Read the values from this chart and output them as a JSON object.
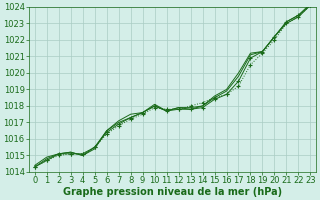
{
  "x": [
    0,
    1,
    2,
    3,
    4,
    5,
    6,
    7,
    8,
    9,
    10,
    11,
    12,
    13,
    14,
    15,
    16,
    17,
    18,
    19,
    20,
    21,
    22,
    23
  ],
  "series": [
    [
      1014.3,
      1014.7,
      1015.0,
      1015.1,
      1015.1,
      1015.5,
      1016.3,
      1016.8,
      1017.2,
      1017.5,
      1017.9,
      1017.8,
      1017.8,
      1018.0,
      1018.2,
      1018.5,
      1018.7,
      1019.2,
      1020.5,
      1021.2,
      1022.0,
      1023.0,
      1023.4,
      1024.1
    ],
    [
      1014.3,
      1014.7,
      1015.1,
      1015.1,
      1015.1,
      1015.5,
      1016.4,
      1016.9,
      1017.3,
      1017.6,
      1018.0,
      1017.7,
      1017.8,
      1017.8,
      1017.9,
      1018.4,
      1018.7,
      1019.5,
      1020.9,
      1021.3,
      1022.2,
      1023.1,
      1023.5,
      1024.1
    ],
    [
      1014.3,
      1014.8,
      1015.1,
      1015.2,
      1015.0,
      1015.5,
      1016.5,
      1017.0,
      1017.3,
      1017.6,
      1018.0,
      1017.7,
      1017.9,
      1017.8,
      1018.0,
      1018.5,
      1018.9,
      1019.8,
      1021.1,
      1021.3,
      1022.2,
      1023.1,
      1023.5,
      1024.2
    ],
    [
      1014.4,
      1014.9,
      1015.1,
      1015.2,
      1015.0,
      1015.4,
      1016.5,
      1017.1,
      1017.5,
      1017.6,
      1018.1,
      1017.7,
      1017.9,
      1017.9,
      1018.0,
      1018.6,
      1019.0,
      1020.0,
      1021.2,
      1021.3,
      1022.2,
      1023.0,
      1023.4,
      1024.1
    ]
  ],
  "line_color": "#1a6b1a",
  "bg_color": "#d4eee8",
  "grid_color": "#aaccc4",
  "axis_color": "#1a6b1a",
  "xlabel": "Graphe pression niveau de la mer (hPa)",
  "ylim": [
    1014,
    1024
  ],
  "xlim": [
    -0.5,
    23.5
  ],
  "yticks": [
    1014,
    1015,
    1016,
    1017,
    1018,
    1019,
    1020,
    1021,
    1022,
    1023,
    1024
  ],
  "xticks": [
    0,
    1,
    2,
    3,
    4,
    5,
    6,
    7,
    8,
    9,
    10,
    11,
    12,
    13,
    14,
    15,
    16,
    17,
    18,
    19,
    20,
    21,
    22,
    23
  ],
  "xlabel_fontsize": 7,
  "tick_fontsize": 6
}
